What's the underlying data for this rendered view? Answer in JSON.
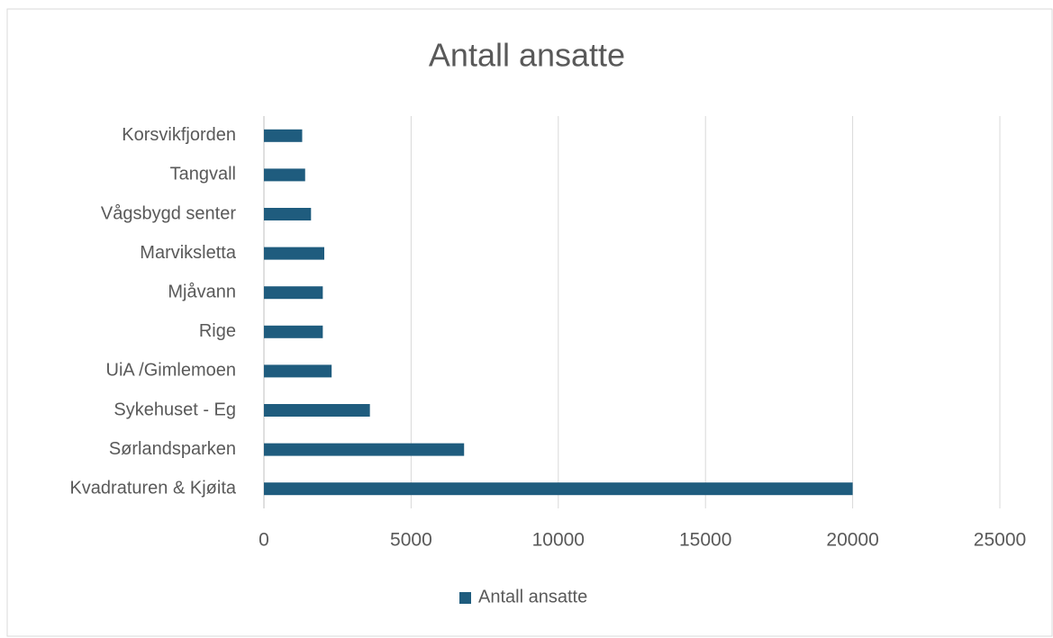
{
  "chart_data": {
    "type": "barh",
    "title": "Antall ansatte",
    "categories": [
      "Korsvikfjorden",
      "Tangvall",
      "Vågsbygd senter",
      "Marviksletta",
      "Mjåvann",
      "Rige",
      "UiA /Gimlemoen",
      "Sykehuset - Eg",
      "Sørlandsparken",
      "Kvadraturen & Kjøita"
    ],
    "series": [
      {
        "name": "Antall ansatte",
        "color": "#1f5c7e",
        "values": [
          1300,
          1400,
          1600,
          2050,
          2000,
          2000,
          2300,
          3600,
          6800,
          20000
        ]
      }
    ],
    "xlim": [
      0,
      25000
    ],
    "xticks": [
      0,
      5000,
      10000,
      15000,
      20000,
      25000
    ],
    "grid": true,
    "legend": "bottom"
  }
}
